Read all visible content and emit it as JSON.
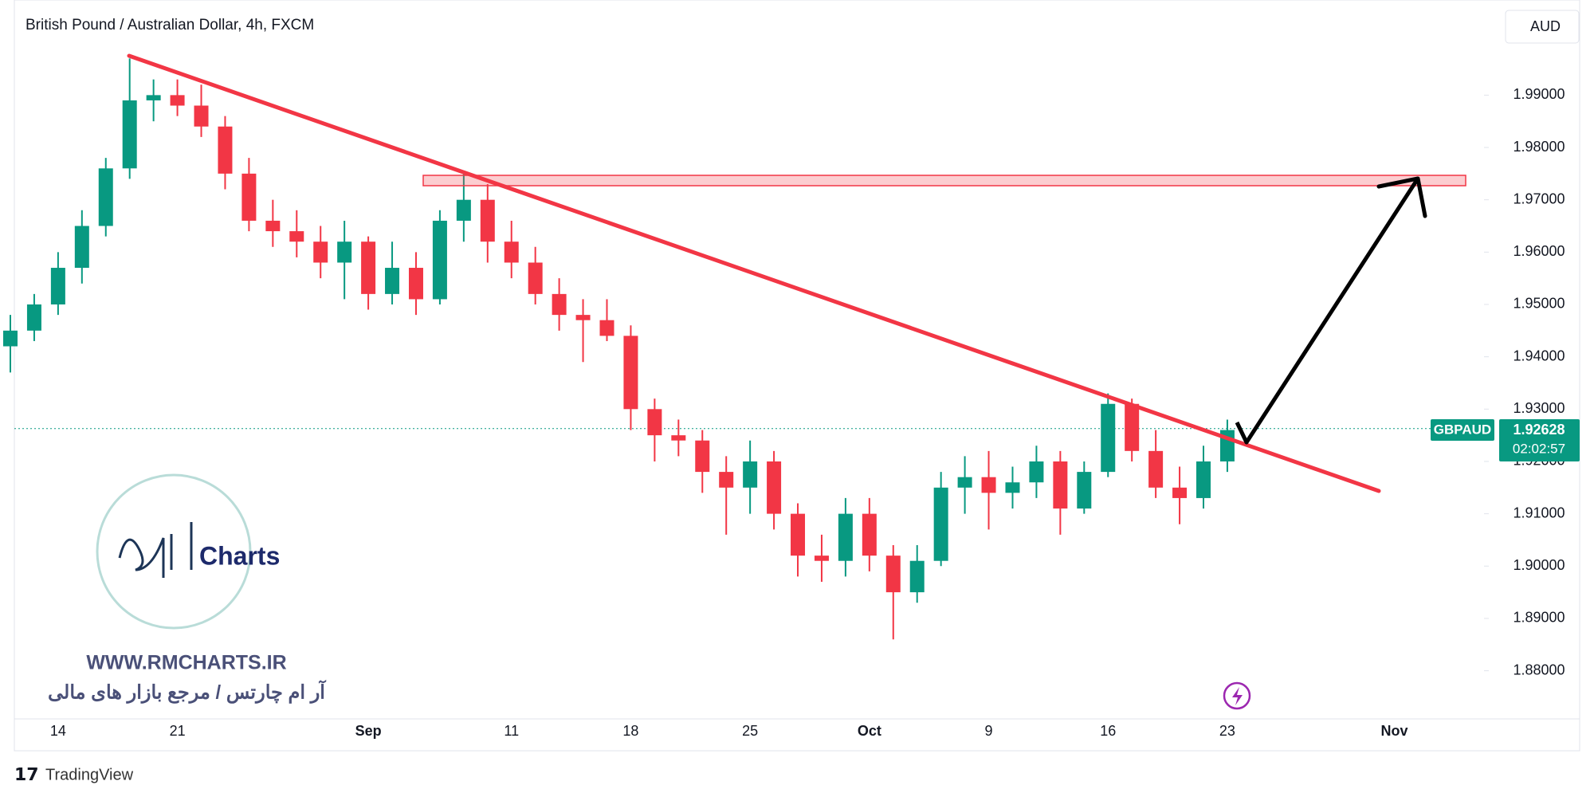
{
  "chart_data": {
    "type": "candlestick",
    "title": "British Pound / Australian Dollar, 4h, FXCM",
    "currency_button": "AUD",
    "symbol_label": "GBPAUD",
    "last_price": 1.92628,
    "countdown": "02:02:57",
    "up_color": "#089981",
    "down_color": "#f23645",
    "grid": false,
    "ylim": [
      1.8708,
      2.0062
    ],
    "yticks": [
      {
        "value": 1.88,
        "label": "1.88000"
      },
      {
        "value": 1.89,
        "label": "1.89000"
      },
      {
        "value": 1.9,
        "label": "1.90000"
      },
      {
        "value": 1.91,
        "label": "1.91000"
      },
      {
        "value": 1.92,
        "label": "1.92000"
      },
      {
        "value": 1.93,
        "label": "1.93000"
      },
      {
        "value": 1.94,
        "label": "1.94000"
      },
      {
        "value": 1.95,
        "label": "1.95000"
      },
      {
        "value": 1.96,
        "label": "1.96000"
      },
      {
        "value": 1.97,
        "label": "1.97000"
      },
      {
        "value": 1.98,
        "label": "1.98000"
      },
      {
        "value": 1.99,
        "label": "1.99000"
      }
    ],
    "categories": [
      null,
      null,
      "14",
      null,
      null,
      null,
      null,
      "21",
      null,
      null,
      null,
      null,
      null,
      null,
      null,
      "Sep",
      null,
      null,
      null,
      null,
      null,
      "11",
      null,
      null,
      null,
      null,
      "18",
      null,
      null,
      null,
      null,
      "25",
      null,
      null,
      null,
      null,
      "Oct",
      null,
      null,
      null,
      null,
      "9",
      null,
      null,
      null,
      null,
      "16",
      null,
      null,
      null,
      null,
      "23",
      null,
      null,
      null,
      null,
      null,
      null,
      "Nov",
      null,
      null,
      null
    ],
    "open": [
      1.942,
      1.945,
      1.95,
      1.957,
      1.965,
      1.976,
      1.989,
      1.99,
      1.988,
      1.984,
      1.975,
      1.966,
      1.964,
      1.962,
      1.958,
      1.962,
      1.952,
      1.957,
      1.951,
      1.966,
      1.97,
      1.962,
      1.958,
      1.952,
      1.948,
      1.947,
      1.944,
      1.93,
      1.925,
      1.924,
      1.918,
      1.915,
      1.92,
      1.91,
      1.902,
      1.901,
      1.91,
      1.902,
      1.895,
      1.901,
      1.915,
      1.917,
      1.914,
      1.916,
      1.92,
      1.911,
      1.918,
      1.931,
      1.922,
      1.915,
      1.913,
      1.92,
      null,
      null,
      null,
      null,
      null,
      null,
      null,
      null,
      null,
      null
    ],
    "high": [
      1.948,
      1.952,
      1.96,
      1.968,
      1.978,
      1.997,
      1.993,
      1.993,
      1.992,
      1.986,
      1.978,
      1.97,
      1.968,
      1.965,
      1.966,
      1.963,
      1.962,
      1.96,
      1.968,
      1.975,
      1.973,
      1.966,
      1.961,
      1.955,
      1.951,
      1.951,
      1.946,
      1.932,
      1.928,
      1.926,
      1.921,
      1.924,
      1.922,
      1.912,
      1.906,
      1.913,
      1.913,
      1.904,
      1.904,
      1.918,
      1.921,
      1.922,
      1.919,
      1.923,
      1.922,
      1.92,
      1.933,
      1.932,
      1.926,
      1.919,
      1.923,
      1.928,
      null,
      null,
      null,
      null,
      null,
      null,
      null,
      null,
      null,
      null
    ],
    "low": [
      1.937,
      1.943,
      1.948,
      1.954,
      1.963,
      1.974,
      1.985,
      1.986,
      1.982,
      1.972,
      1.964,
      1.961,
      1.959,
      1.955,
      1.951,
      1.949,
      1.95,
      1.948,
      1.95,
      1.962,
      1.958,
      1.955,
      1.95,
      1.945,
      1.939,
      1.943,
      1.926,
      1.92,
      1.921,
      1.914,
      1.906,
      1.91,
      1.907,
      1.898,
      1.897,
      1.898,
      1.899,
      1.886,
      1.893,
      1.9,
      1.91,
      1.907,
      1.911,
      1.913,
      1.906,
      1.91,
      1.917,
      1.92,
      1.913,
      1.908,
      1.911,
      1.918,
      null,
      null,
      null,
      null,
      null,
      null,
      null,
      null,
      null,
      null
    ],
    "close": [
      1.945,
      1.95,
      1.957,
      1.965,
      1.976,
      1.989,
      1.99,
      1.988,
      1.984,
      1.975,
      1.966,
      1.964,
      1.962,
      1.958,
      1.962,
      1.952,
      1.957,
      1.951,
      1.966,
      1.97,
      1.962,
      1.958,
      1.952,
      1.948,
      1.947,
      1.944,
      1.93,
      1.925,
      1.924,
      1.918,
      1.915,
      1.92,
      1.91,
      1.902,
      1.901,
      1.91,
      1.902,
      1.895,
      1.901,
      1.915,
      1.917,
      1.914,
      1.916,
      1.92,
      1.911,
      1.918,
      1.931,
      1.922,
      1.915,
      1.913,
      1.92,
      1.926,
      null,
      null,
      null,
      null,
      null,
      null,
      null,
      null,
      null,
      null
    ]
  },
  "watermark": {
    "logo_text": "Charts",
    "website": "WWW.RMCHARTS.IR",
    "tagline": "آر ام چارتس / مرجع بازار های مالی"
  },
  "footer": {
    "brand": "TradingView"
  }
}
